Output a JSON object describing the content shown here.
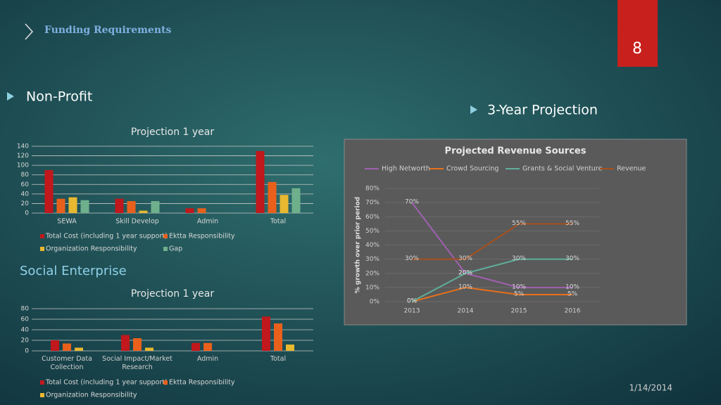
{
  "header": {
    "title": "Funding Requirements",
    "page": "8",
    "date": "1/14/2014"
  },
  "sections": [
    "Non-Profit",
    "3-Year Projection",
    "Social Enterprise"
  ],
  "chart_data": [
    {
      "type": "bar",
      "title": "Projection 1 year",
      "categories": [
        "SEWA",
        "Skill Develop",
        "Admin",
        "Total"
      ],
      "series": [
        {
          "name": "Total Cost (including 1 year support)",
          "color": "#c0181c",
          "values": [
            90,
            30,
            10,
            130
          ]
        },
        {
          "name": "Ektta Responsibility",
          "color": "#e8601c",
          "values": [
            30,
            25,
            10,
            65
          ]
        },
        {
          "name": "Organization Responsibility",
          "color": "#e8b830",
          "values": [
            33,
            5,
            0,
            38
          ]
        },
        {
          "name": "Gap",
          "color": "#6fb08c",
          "values": [
            27,
            25,
            0,
            52
          ]
        }
      ],
      "ylim": [
        0,
        140
      ],
      "yticks": [
        0,
        20,
        40,
        60,
        80,
        100,
        120,
        140
      ],
      "grid": true
    },
    {
      "type": "bar",
      "title": "Projection 1 year",
      "categories": [
        "Customer Data Collection",
        "Social Impact/Market Research",
        "Admin",
        "Total"
      ],
      "series": [
        {
          "name": "Total Cost (including 1 year support)",
          "color": "#c0181c",
          "values": [
            20,
            30,
            15,
            65
          ]
        },
        {
          "name": "Ektta Responsibility",
          "color": "#e8601c",
          "values": [
            14,
            24,
            15,
            52
          ]
        },
        {
          "name": "Organization Responsibility",
          "color": "#e8b830",
          "values": [
            6,
            6,
            0,
            12
          ]
        }
      ],
      "ylim": [
        0,
        80
      ],
      "yticks": [
        0,
        20,
        40,
        60,
        80
      ],
      "grid": true
    },
    {
      "type": "line",
      "title": "Projected Revenue Sources",
      "y_label": "% growth over prior period",
      "categories": [
        "2013",
        "2014",
        "2015",
        "2016"
      ],
      "series": [
        {
          "name": "High Networth",
          "color": "#a060b0",
          "values": [
            70,
            20,
            10,
            10
          ],
          "value_labels": [
            "70%",
            "20%",
            "10%",
            "10%"
          ]
        },
        {
          "name": "Crowd Sourcing",
          "color": "#e8701c",
          "values": [
            0,
            10,
            5,
            5
          ],
          "value_labels": [
            "0%",
            "10%",
            "5%",
            "5%"
          ]
        },
        {
          "name": "Grants & Social Venture",
          "color": "#5fae9a",
          "values": [
            0,
            20,
            30,
            30
          ],
          "value_labels": [
            "0%",
            "20%",
            "30%",
            "30%"
          ]
        },
        {
          "name": "Revenue",
          "color": "#a8501c",
          "values": [
            30,
            30,
            55,
            55
          ],
          "value_labels": [
            "30%",
            "30%",
            "55%",
            "55%"
          ]
        }
      ],
      "ylim": [
        0,
        80
      ],
      "yticks": [
        {
          "value": 0,
          "label": "0%"
        },
        {
          "value": 10,
          "label": "10%"
        },
        {
          "value": 20,
          "label": "20%"
        },
        {
          "value": 30,
          "label": "30%"
        },
        {
          "value": 40,
          "label": "40%"
        },
        {
          "value": 50,
          "label": "50%"
        },
        {
          "value": 60,
          "label": "60%"
        },
        {
          "value": 70,
          "label": "70%"
        },
        {
          "value": 80,
          "label": "80%"
        }
      ],
      "grid": true
    }
  ]
}
